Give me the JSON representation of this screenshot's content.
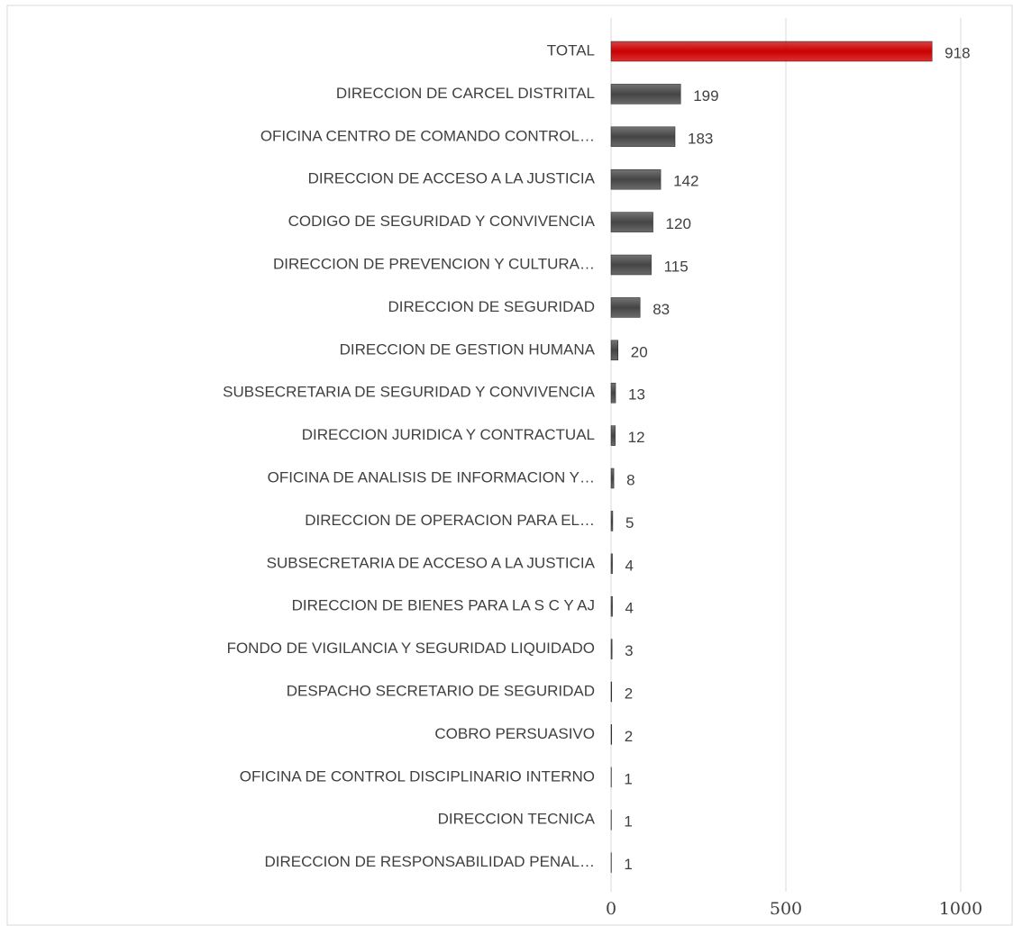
{
  "chart_data": {
    "type": "barh",
    "categories": [
      "TOTAL",
      "DIRECCION DE CARCEL DISTRITAL",
      "OFICINA CENTRO DE COMANDO CONTROL…",
      "DIRECCION DE ACCESO A LA JUSTICIA",
      "CODIGO DE SEGURIDAD Y CONVIVENCIA",
      "DIRECCION DE PREVENCION Y CULTURA…",
      "DIRECCION DE SEGURIDAD",
      "DIRECCION DE GESTION HUMANA",
      "SUBSECRETARIA DE SEGURIDAD Y CONVIVENCIA",
      "DIRECCION JURIDICA Y CONTRACTUAL",
      "OFICINA DE ANALISIS DE INFORMACION Y…",
      "DIRECCION DE OPERACION PARA EL…",
      "SUBSECRETARIA DE ACCESO A LA JUSTICIA",
      "DIRECCION DE BIENES PARA LA S C Y AJ",
      "FONDO DE VIGILANCIA Y SEGURIDAD LIQUIDADO",
      "DESPACHO SECRETARIO DE SEGURIDAD",
      "COBRO PERSUASIVO",
      "OFICINA DE CONTROL DISCIPLINARIO INTERNO",
      "DIRECCION TECNICA",
      "DIRECCION DE RESPONSABILIDAD PENAL…"
    ],
    "values": [
      918,
      199,
      183,
      142,
      120,
      115,
      83,
      20,
      13,
      12,
      8,
      5,
      4,
      4,
      3,
      2,
      2,
      1,
      1,
      1
    ],
    "colors": [
      "#cc0000",
      "#454545",
      "#454545",
      "#454545",
      "#454545",
      "#454545",
      "#454545",
      "#454545",
      "#454545",
      "#454545",
      "#454545",
      "#454545",
      "#454545",
      "#454545",
      "#454545",
      "#454545",
      "#454545",
      "#454545",
      "#454545",
      "#454545"
    ],
    "xlim": [
      0,
      1000
    ],
    "xticks": [
      0,
      500,
      1000
    ],
    "grid": true
  }
}
